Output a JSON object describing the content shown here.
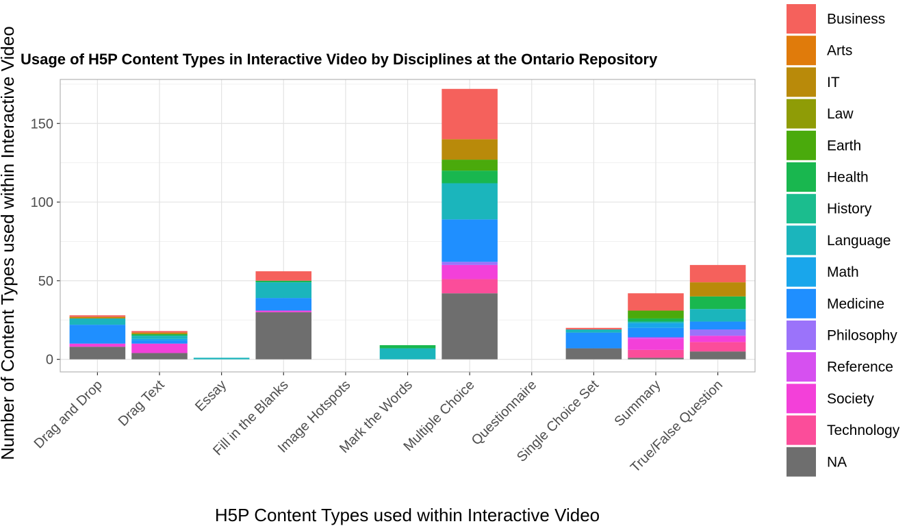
{
  "chart_data": {
    "type": "bar",
    "stacked": true,
    "title": "Usage of H5P Content Types in Interactive Video by Disciplines at the Ontario Repository",
    "xlabel": "H5P Content Types used within Interactive Video",
    "ylabel": "Number of Content Types used within Interactive Video",
    "ylim": [
      -8,
      178
    ],
    "yticks": [
      0,
      50,
      100,
      150
    ],
    "grid": true,
    "legend_position": "right",
    "categories": [
      "Drag and Drop",
      "Drag Text",
      "Essay",
      "Fill in the Blanks",
      "Image Hotspots",
      "Mark the Words",
      "Multiple Choice",
      "Questionnaire",
      "Single Choice Set",
      "Summary",
      "True/False Question"
    ],
    "series": [
      {
        "name": "NA",
        "color": "#6e6e6e",
        "values": [
          8,
          4,
          0,
          30,
          0,
          0,
          42,
          0,
          7,
          1,
          5
        ]
      },
      {
        "name": "Technology",
        "color": "#fb4d9a",
        "values": [
          0,
          0,
          0,
          0,
          0,
          0,
          9,
          0,
          0,
          5,
          6
        ]
      },
      {
        "name": "Society",
        "color": "#f340d9",
        "values": [
          2,
          6,
          0,
          1,
          0,
          0,
          9,
          0,
          0,
          7,
          4
        ]
      },
      {
        "name": "Reference",
        "color": "#d650f0",
        "values": [
          0,
          0,
          0,
          0,
          0,
          0,
          0,
          0,
          0,
          1,
          0
        ]
      },
      {
        "name": "Philosophy",
        "color": "#9b73fa",
        "values": [
          0,
          0,
          0,
          0,
          0,
          0,
          2,
          0,
          0,
          0,
          4
        ]
      },
      {
        "name": "Medicine",
        "color": "#1f8fff",
        "values": [
          12,
          2,
          0,
          8,
          0,
          0,
          27,
          0,
          10,
          6,
          5
        ]
      },
      {
        "name": "Math",
        "color": "#19a6eb",
        "values": [
          0,
          1,
          0,
          0,
          0,
          0,
          0,
          0,
          0,
          3,
          0
        ]
      },
      {
        "name": "Language",
        "color": "#1bb5bc",
        "values": [
          4,
          2,
          1,
          10,
          0,
          7,
          23,
          0,
          2,
          1,
          8
        ]
      },
      {
        "name": "History",
        "color": "#1bbd8e",
        "values": [
          0,
          0,
          0,
          0,
          0,
          0,
          0,
          0,
          0,
          0,
          0
        ]
      },
      {
        "name": "Health",
        "color": "#19b74f",
        "values": [
          0,
          1,
          0,
          1,
          0,
          2,
          8,
          0,
          0,
          2,
          8
        ]
      },
      {
        "name": "Earth",
        "color": "#4aaa0c",
        "values": [
          0,
          0,
          0,
          0,
          0,
          0,
          7,
          0,
          0,
          5,
          0
        ]
      },
      {
        "name": "Law",
        "color": "#8f9c06",
        "values": [
          0,
          0,
          0,
          0,
          0,
          0,
          0,
          0,
          0,
          0,
          0
        ]
      },
      {
        "name": "IT",
        "color": "#b98a0a",
        "values": [
          1,
          1,
          0,
          0,
          0,
          0,
          13,
          0,
          0,
          0,
          9
        ]
      },
      {
        "name": "Arts",
        "color": "#e07b0b",
        "values": [
          0,
          0,
          0,
          0,
          0,
          0,
          0,
          0,
          0,
          0,
          0
        ]
      },
      {
        "name": "Business",
        "color": "#f5615c",
        "values": [
          1,
          1,
          0,
          6,
          0,
          0,
          32,
          0,
          1,
          11,
          11
        ]
      }
    ],
    "legend_order": [
      "Business",
      "Arts",
      "IT",
      "Law",
      "Earth",
      "Health",
      "History",
      "Language",
      "Math",
      "Medicine",
      "Philosophy",
      "Reference",
      "Society",
      "Technology",
      "NA"
    ]
  }
}
